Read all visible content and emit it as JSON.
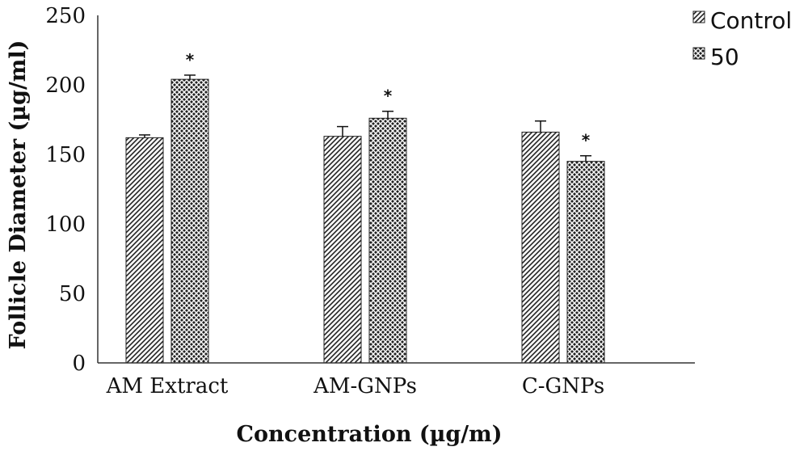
{
  "chart_data": {
    "type": "bar",
    "categories": [
      "AM Extract",
      "AM-GNPs",
      "C-GNPs"
    ],
    "series": [
      {
        "name": "Control",
        "values": [
          162,
          163,
          166
        ],
        "errors": [
          2,
          7,
          8
        ],
        "pattern": "diagonal-hatch"
      },
      {
        "name": "50",
        "values": [
          204,
          176,
          145
        ],
        "errors": [
          3,
          5,
          4
        ],
        "pattern": "crosshatch"
      }
    ],
    "significance": [
      [
        false,
        false,
        false
      ],
      [
        true,
        true,
        true
      ]
    ],
    "significance_marker": "*",
    "yticks": [
      "0",
      "50",
      "100",
      "150",
      "200",
      "250"
    ],
    "ylim": [
      0,
      250
    ],
    "xlabel": "Concentration (µg/m)",
    "ylabel": "Follicle Diameter (µg/ml)",
    "legend_position": "top-right",
    "colors": {
      "bar_fill": "#ffffff",
      "hatch": "#222222",
      "axis": "#333333"
    }
  }
}
